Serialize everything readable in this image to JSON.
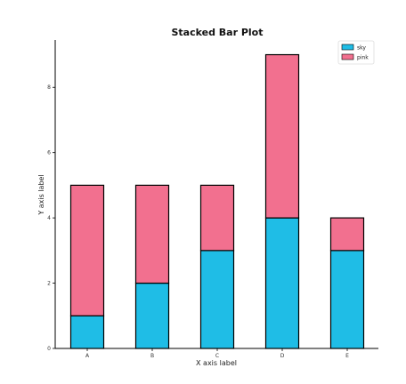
{
  "chart_data": {
    "type": "bar",
    "stacked": true,
    "title": "Stacked Bar Plot",
    "xlabel": "X axis label",
    "ylabel": "Y axis label",
    "categories": [
      "A",
      "B",
      "C",
      "D",
      "E"
    ],
    "ylim": [
      0,
      9.45
    ],
    "yticks": [
      0,
      2,
      4,
      6,
      8
    ],
    "grid": false,
    "legend_position": "top-right",
    "series": [
      {
        "name": "sky",
        "color": "#1fbde6",
        "values": [
          1,
          2,
          3,
          4,
          3
        ]
      },
      {
        "name": "pink",
        "color": "#f2708f",
        "values": [
          4,
          3,
          2,
          5,
          1
        ]
      }
    ]
  }
}
